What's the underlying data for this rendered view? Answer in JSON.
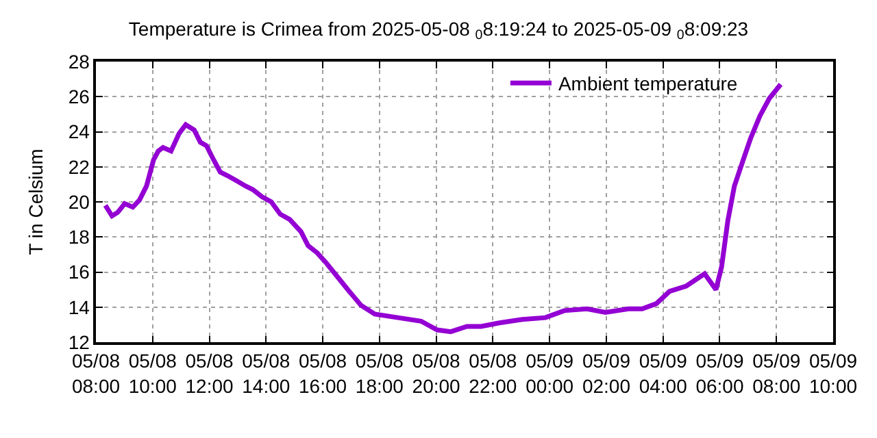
{
  "chart_data": {
    "type": "line",
    "title": "Temperature is Crimea from 2025-05-08 $_{0}$8:19:24 to 2025-05-09 $_{0}$8:09:23",
    "ylabel": "T in Celsium",
    "x": [
      "2025-05-08T08:20",
      "2025-05-08T08:34",
      "2025-05-08T08:46",
      "2025-05-08T09:01",
      "2025-05-08T09:18",
      "2025-05-08T09:32",
      "2025-05-08T09:47",
      "2025-05-08T10:02",
      "2025-05-08T10:12",
      "2025-05-08T10:22",
      "2025-05-08T10:39",
      "2025-05-08T10:56",
      "2025-05-08T11:10",
      "2025-05-08T11:28",
      "2025-05-08T11:41",
      "2025-05-08T11:54",
      "2025-05-08T12:09",
      "2025-05-08T12:23",
      "2025-05-08T12:38",
      "2025-05-08T12:58",
      "2025-05-08T13:17",
      "2025-05-08T13:32",
      "2025-05-08T13:51",
      "2025-05-08T14:11",
      "2025-05-08T14:30",
      "2025-05-08T14:50",
      "2025-05-08T15:14",
      "2025-05-08T15:29",
      "2025-05-08T15:48",
      "2025-05-08T16:08",
      "2025-05-08T16:32",
      "2025-05-08T16:56",
      "2025-05-08T17:21",
      "2025-05-08T17:50",
      "2025-05-08T18:39",
      "2025-05-08T19:28",
      "2025-05-08T20:02",
      "2025-05-08T20:31",
      "2025-05-08T21:05",
      "2025-05-08T21:35",
      "2025-05-08T22:14",
      "2025-05-08T23:02",
      "2025-05-08T23:51",
      "2025-05-09T00:31",
      "2025-05-09T01:19",
      "2025-05-09T01:58",
      "2025-05-09T02:47",
      "2025-05-09T03:16",
      "2025-05-09T03:46",
      "2025-05-09T04:14",
      "2025-05-09T04:49",
      "2025-05-09T05:28",
      "2025-05-09T05:52",
      "2025-05-09T06:04",
      "2025-05-09T06:17",
      "2025-05-09T06:31",
      "2025-05-09T06:46",
      "2025-05-09T07:05",
      "2025-05-09T07:25",
      "2025-05-09T07:45",
      "2025-05-09T08:09"
    ],
    "series": [
      {
        "name": "Ambient temperature",
        "color": "#9400d3",
        "values": [
          19.8,
          19.2,
          19.4,
          19.9,
          19.7,
          20.1,
          20.9,
          22.4,
          22.9,
          23.1,
          22.9,
          23.9,
          24.4,
          24.1,
          23.4,
          23.2,
          22.4,
          21.7,
          21.5,
          21.2,
          20.9,
          20.7,
          20.3,
          20.0,
          19.3,
          19.0,
          18.3,
          17.5,
          17.1,
          16.5,
          15.7,
          14.9,
          14.1,
          13.6,
          13.4,
          13.2,
          12.7,
          12.6,
          12.9,
          12.9,
          13.1,
          13.3,
          13.4,
          13.8,
          13.9,
          13.7,
          13.9,
          13.9,
          14.2,
          14.9,
          15.2,
          15.9,
          15.0,
          16.3,
          18.9,
          20.9,
          22.1,
          23.6,
          24.9,
          25.9,
          26.7
        ]
      }
    ],
    "xlim": [
      "2025-05-08T08:00",
      "2025-05-09T10:00"
    ],
    "xticks": [
      {
        "value": "2025-05-08T08:00",
        "label": "05/08\n08:00"
      },
      {
        "value": "2025-05-08T10:00",
        "label": "05/08\n10:00"
      },
      {
        "value": "2025-05-08T12:00",
        "label": "05/08\n12:00"
      },
      {
        "value": "2025-05-08T14:00",
        "label": "05/08\n14:00"
      },
      {
        "value": "2025-05-08T16:00",
        "label": "05/08\n16:00"
      },
      {
        "value": "2025-05-08T18:00",
        "label": "05/08\n18:00"
      },
      {
        "value": "2025-05-08T20:00",
        "label": "05/08\n20:00"
      },
      {
        "value": "2025-05-08T22:00",
        "label": "05/08\n22:00"
      },
      {
        "value": "2025-05-09T00:00",
        "label": "05/09\n00:00"
      },
      {
        "value": "2025-05-09T02:00",
        "label": "05/09\n02:00"
      },
      {
        "value": "2025-05-09T04:00",
        "label": "05/09\n04:00"
      },
      {
        "value": "2025-05-09T06:00",
        "label": "05/09\n06:00"
      },
      {
        "value": "2025-05-09T08:00",
        "label": "05/09\n08:00"
      },
      {
        "value": "2025-05-09T10:00",
        "label": "05/09\n10:00"
      }
    ],
    "ylim": [
      12,
      28
    ],
    "yticks": [
      12,
      14,
      16,
      18,
      20,
      22,
      24,
      26,
      28
    ],
    "grid": true,
    "legend": "top right",
    "marker": "none",
    "line_style": "solid"
  }
}
